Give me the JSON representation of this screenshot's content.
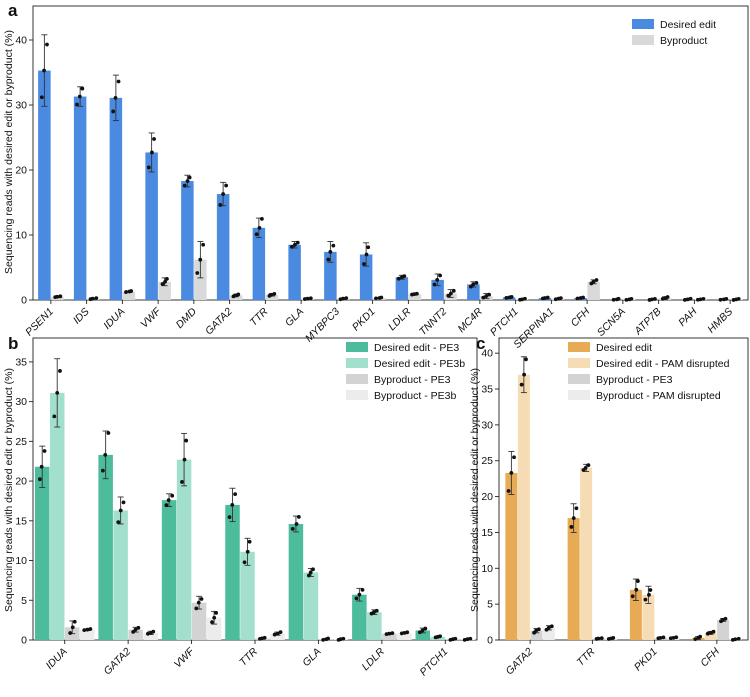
{
  "colors": {
    "blue": "#4a8ae0",
    "gray": "#d9d9d9",
    "teal_dark": "#4cbc9c",
    "teal_light": "#a2e0cd",
    "gray_dark": "#d3d3d3",
    "gray_light": "#ececec",
    "orange_dark": "#e7aa55",
    "orange_light": "#f5dcb4"
  },
  "chart_data": [
    {
      "panel": "a",
      "type": "bar",
      "ylabel": "Sequencing reads with desired edit or byproduct (%)",
      "ylim": [
        0,
        44
      ],
      "yticks": [
        0,
        10,
        20,
        30,
        40
      ],
      "legend_position": "top-right",
      "categories": [
        "PSEN1",
        "IDS",
        "IDUA",
        "VWF",
        "DMD",
        "GATA2",
        "TTR",
        "GLA",
        "MYBPC3",
        "PKD1",
        "LDLR",
        "TNNT2",
        "MC4R",
        "PTCH1",
        "SERPINA1",
        "CFH",
        "SCN5A",
        "ATP7B",
        "PAH",
        "HMBS"
      ],
      "series": [
        {
          "name": "Desired edit",
          "color_key": "blue",
          "values": [
            35.3,
            31.3,
            31.1,
            22.7,
            18.3,
            16.3,
            11.1,
            8.5,
            7.4,
            7.0,
            3.5,
            3.1,
            2.4,
            0.4,
            0.3,
            0.3,
            0.1,
            0.1,
            0.1,
            0.1
          ],
          "errors": [
            5.5,
            1.5,
            3.5,
            3.0,
            0.9,
            1.8,
            1.5,
            0.5,
            1.6,
            1.8,
            0.3,
            0.9,
            0.4,
            0.1,
            0.1,
            0.1,
            0.1,
            0.1,
            0.1,
            0.1
          ]
        },
        {
          "name": "Byproduct",
          "color_key": "gray",
          "values": [
            0.5,
            0.2,
            1.3,
            2.8,
            6.2,
            0.7,
            0.8,
            0.2,
            0.2,
            0.3,
            0.9,
            1.0,
            0.6,
            0.1,
            0.2,
            2.8,
            0.1,
            0.3,
            0.1,
            0.1
          ],
          "errors": [
            0.1,
            0.1,
            0.1,
            0.6,
            2.8,
            0.2,
            0.2,
            0.1,
            0.1,
            0.1,
            0.1,
            0.6,
            0.4,
            0.1,
            0.1,
            0.3,
            0.1,
            0.2,
            0.1,
            0.1
          ]
        }
      ]
    },
    {
      "panel": "b",
      "type": "bar",
      "ylabel": "Sequencing reads with desired edit or byproduct (%)",
      "ylim": [
        0,
        37
      ],
      "yticks": [
        0,
        5,
        10,
        15,
        20,
        25,
        30,
        35
      ],
      "legend_position": "top-right",
      "categories": [
        "IDUA",
        "GATA2",
        "VWF",
        "TTR",
        "GLA",
        "LDLR",
        "PTCH1"
      ],
      "series": [
        {
          "name": "Desired edit - PE3",
          "color_key": "teal_dark",
          "values": [
            21.8,
            23.3,
            17.6,
            17.0,
            14.6,
            5.7,
            1.2
          ],
          "errors": [
            2.6,
            3.0,
            0.8,
            2.1,
            1.0,
            0.8,
            0.3
          ]
        },
        {
          "name": "Desired edit - PE3b",
          "color_key": "teal_light",
          "values": [
            31.1,
            16.3,
            22.7,
            11.1,
            8.5,
            3.5,
            0.4
          ],
          "errors": [
            4.3,
            1.7,
            3.3,
            1.7,
            0.5,
            0.3,
            0.1
          ]
        },
        {
          "name": "Byproduct - PE3",
          "color_key": "gray_dark",
          "values": [
            1.6,
            1.3,
            4.7,
            0.2,
            0.1,
            0.8,
            0.1
          ],
          "errors": [
            0.8,
            0.3,
            0.8,
            0.1,
            0.1,
            0.1,
            0.1
          ]
        },
        {
          "name": "Byproduct - PE3b",
          "color_key": "gray_light",
          "values": [
            1.3,
            0.9,
            2.8,
            0.8,
            0.1,
            0.9,
            0.1
          ],
          "errors": [
            0.1,
            0.2,
            0.8,
            0.2,
            0.1,
            0.1,
            0.1
          ]
        }
      ]
    },
    {
      "panel": "c",
      "type": "bar",
      "ylabel": "Sequencing reads with desired edit or byproduct (%)",
      "ylim": [
        0,
        41
      ],
      "yticks": [
        0,
        5,
        10,
        15,
        20,
        25,
        30,
        35,
        40
      ],
      "legend_position": "top-right",
      "categories": [
        "GATA2",
        "TTR",
        "PKD1",
        "CFH"
      ],
      "series": [
        {
          "name": "Desired edit",
          "color_key": "orange_dark",
          "values": [
            23.3,
            17.0,
            7.0,
            0.3
          ],
          "errors": [
            3.0,
            2.0,
            1.5,
            0.2
          ]
        },
        {
          "name": "Desired edit - PAM disrupted",
          "color_key": "orange_light",
          "values": [
            37.0,
            24.0,
            6.3,
            1.0
          ],
          "errors": [
            2.5,
            0.5,
            1.2,
            0.2
          ]
        },
        {
          "name": "Byproduct - PE3",
          "color_key": "gray_dark",
          "values": [
            1.3,
            0.2,
            0.3,
            2.8
          ],
          "errors": [
            0.3,
            0.1,
            0.1,
            0.2
          ]
        },
        {
          "name": "Byproduct - PAM disrupted",
          "color_key": "gray_light",
          "values": [
            1.7,
            0.2,
            0.3,
            0.1
          ],
          "errors": [
            0.3,
            0.1,
            0.1,
            0.1
          ]
        }
      ]
    }
  ]
}
